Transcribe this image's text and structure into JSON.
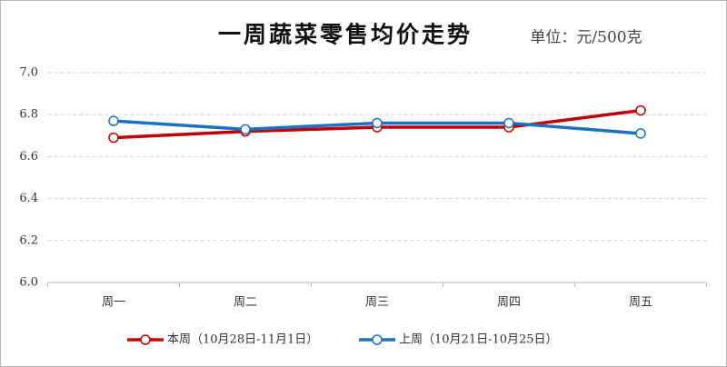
{
  "chart_data": {
    "type": "line",
    "title": "一周蔬菜零售均价走势",
    "subtitle": "单位：元/500克",
    "categories": [
      "周一",
      "周二",
      "周三",
      "周四",
      "周五"
    ],
    "series": [
      {
        "name": "本周（10月28日-11月1日）",
        "color": "#c00000",
        "values": [
          6.69,
          6.72,
          6.74,
          6.74,
          6.82
        ]
      },
      {
        "name": "上周（10月21日-10月25日）",
        "color": "#1a72c0",
        "values": [
          6.77,
          6.73,
          6.76,
          6.76,
          6.71
        ]
      }
    ],
    "ylim": [
      6,
      7
    ],
    "yticks": [
      {
        "value": 6,
        "label": "6.0"
      },
      6.2,
      6.4,
      6.6,
      6.8,
      {
        "value": 7,
        "label": "7.0"
      }
    ],
    "grid": true,
    "legend": "bottom"
  }
}
